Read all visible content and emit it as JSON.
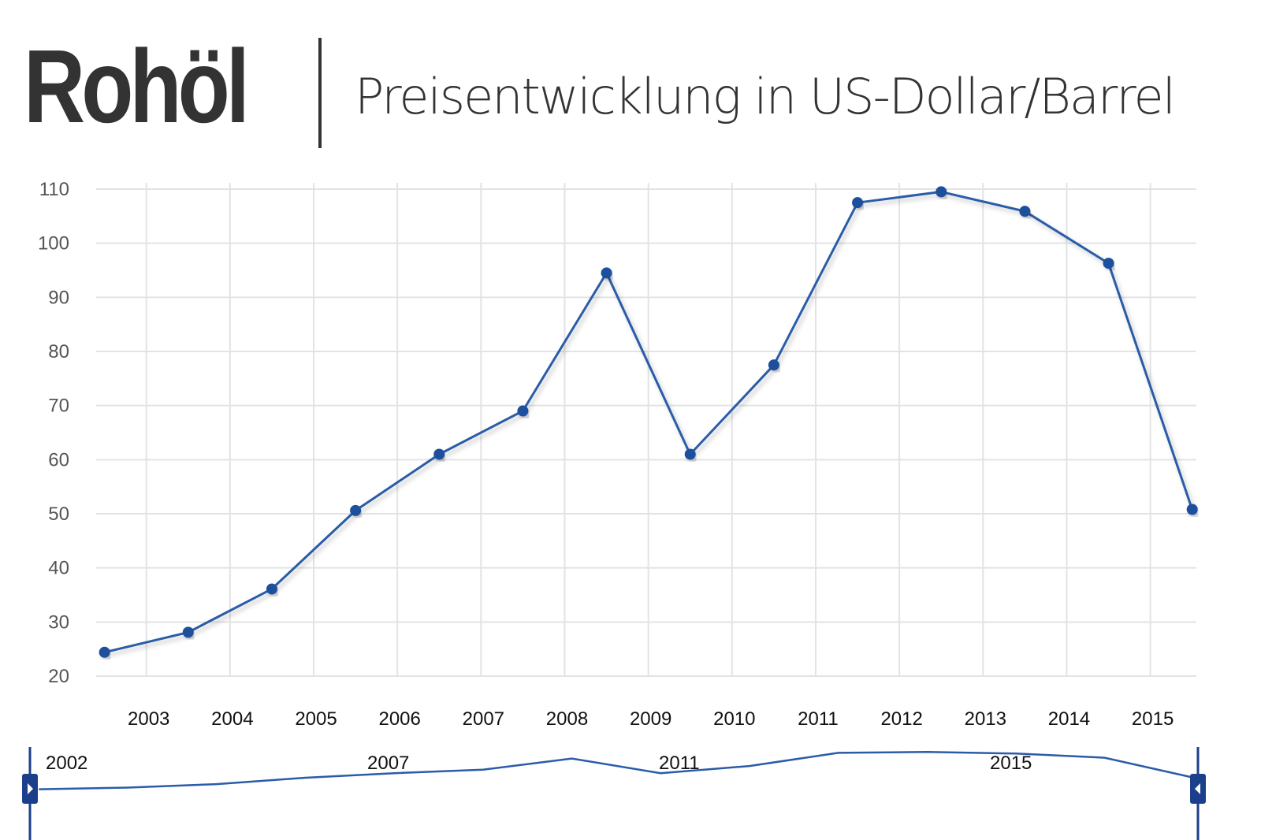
{
  "header": {
    "title": "Rohöl",
    "subtitle": "Preisentwicklung in US-Dollar/Barrel"
  },
  "colors": {
    "line": "#2a5ca8",
    "point": "#1f4f9c",
    "grid": "#e3e3e3",
    "handle": "#1b3f8a"
  },
  "chart_data": {
    "type": "line",
    "title": "Rohöl",
    "subtitle": "Preisentwicklung in US-Dollar/Barrel",
    "xlabel": "",
    "ylabel": "",
    "x": [
      2002.5,
      2003.5,
      2004.5,
      2005.5,
      2006.5,
      2007.5,
      2008.5,
      2009.5,
      2010.5,
      2011.5,
      2012.5,
      2013.5,
      2014.5,
      2015.5
    ],
    "series": [
      {
        "values": [
          24.4,
          28.1,
          36.1,
          50.6,
          61.0,
          69.0,
          94.5,
          61.0,
          77.5,
          107.5,
          109.5,
          105.9,
          96.3,
          50.8
        ]
      }
    ],
    "x_ticks": [
      "2003",
      "2004",
      "2005",
      "2006",
      "2007",
      "2008",
      "2009",
      "2010",
      "2011",
      "2012",
      "2013",
      "2014",
      "2015"
    ],
    "y_ticks": [
      20,
      30,
      40,
      50,
      60,
      70,
      80,
      90,
      100,
      110
    ],
    "ylim": [
      20,
      110
    ],
    "xlim": [
      2002.4,
      2015.55
    ],
    "grid": true,
    "legend": "none",
    "navigator": {
      "labels": [
        "2002",
        "2007",
        "2011",
        "2015"
      ],
      "handles": [
        "left",
        "right"
      ]
    }
  }
}
